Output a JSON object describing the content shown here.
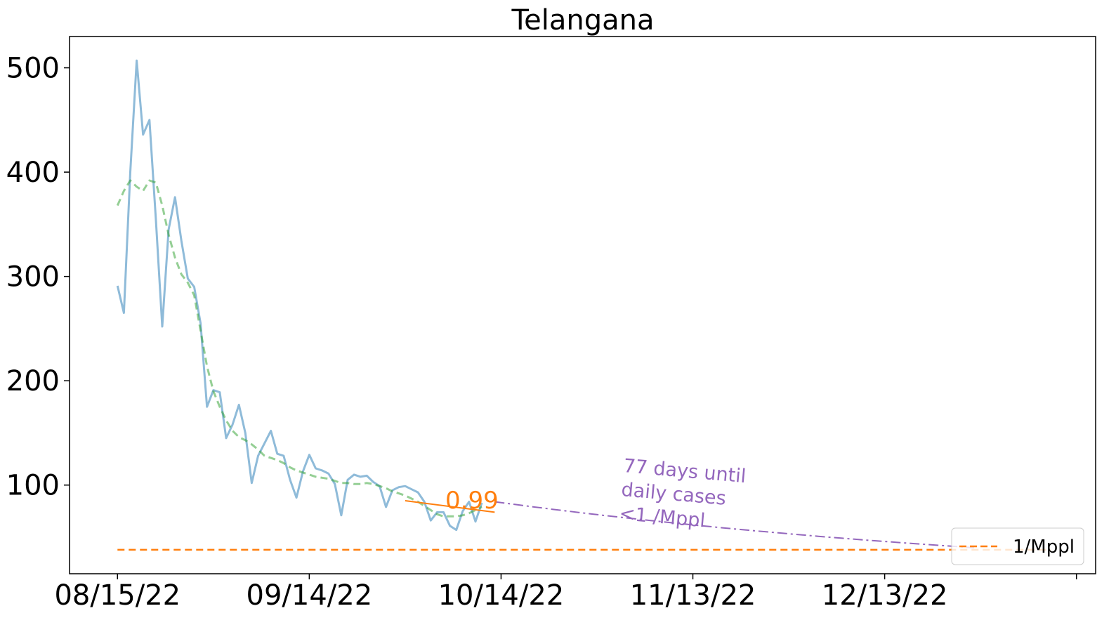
{
  "chart_data": {
    "type": "line",
    "title": "Telangana",
    "xlabel": "",
    "ylabel": "",
    "x_start": "08/15/22",
    "xlim_days": [
      -7.5,
      153
    ],
    "ylim": [
      15,
      530
    ],
    "yticks": [
      100,
      200,
      300,
      400,
      500
    ],
    "xticks": [
      {
        "day": 0,
        "label": "08/15/22"
      },
      {
        "day": 30,
        "label": "09/14/22"
      },
      {
        "day": 60,
        "label": "10/14/22"
      },
      {
        "day": 90,
        "label": "11/13/22"
      },
      {
        "day": 120,
        "label": "12/13/22"
      },
      {
        "day": 150,
        "label": ""
      }
    ],
    "grid": false,
    "legend": {
      "placement": "bottom-right",
      "entries": [
        "1/Mppl"
      ]
    },
    "series": [
      {
        "role": "daily",
        "color": "#1f77b4",
        "x": [
          0,
          1,
          2,
          3,
          4,
          5,
          6,
          7,
          8,
          9,
          10,
          11,
          12,
          13,
          14,
          15,
          16,
          17,
          18,
          19,
          20,
          21,
          22,
          23,
          24,
          25,
          26,
          27,
          28,
          29,
          30,
          31,
          32,
          33,
          34,
          35,
          36,
          37,
          38,
          39,
          40,
          41,
          42,
          43,
          44,
          45,
          46,
          47,
          48,
          49,
          50,
          51,
          52,
          53,
          54,
          55,
          56,
          57
        ],
        "y": [
          291,
          265,
          400,
          507,
          436,
          450,
          355,
          252,
          345,
          376,
          334,
          298,
          290,
          255,
          175,
          191,
          189,
          145,
          158,
          177,
          150,
          102,
          128,
          140,
          152,
          130,
          128,
          105,
          88,
          113,
          129,
          116,
          114,
          111,
          101,
          71,
          105,
          110,
          108,
          109,
          103,
          99,
          79,
          95,
          98,
          99,
          96,
          93,
          84,
          66,
          74,
          74,
          61,
          57,
          75,
          84,
          65,
          83
        ]
      },
      {
        "role": "smoothed",
        "color": "#2ca02c",
        "x": [
          0,
          1,
          2,
          3,
          4,
          5,
          6,
          7,
          8,
          9,
          10,
          11,
          12,
          13,
          14,
          15,
          16,
          17,
          18,
          19,
          20,
          21,
          22,
          23,
          24,
          25,
          26,
          27,
          28,
          29,
          30,
          31,
          32,
          33,
          34,
          35,
          36,
          37,
          38,
          39,
          40,
          41,
          42,
          43,
          44,
          45,
          46,
          47,
          48,
          49,
          50,
          51,
          52,
          53,
          54,
          55,
          56,
          57
        ],
        "y": [
          368,
          382,
          392,
          386,
          382,
          392,
          390,
          368,
          340,
          318,
          302,
          294,
          282,
          248,
          214,
          190,
          175,
          162,
          152,
          146,
          143,
          139,
          134,
          128,
          126,
          124,
          121,
          117,
          114,
          112,
          110,
          108,
          107,
          106,
          104,
          102,
          102,
          101,
          101,
          102,
          101,
          99,
          97,
          94,
          92,
          90,
          87,
          84,
          80,
          76,
          72,
          70,
          70,
          70,
          71,
          73,
          76,
          79
        ]
      }
    ],
    "trend_fit": {
      "color": "#ff7f0e",
      "x": [
        45,
        59
      ],
      "y": [
        85,
        74
      ],
      "label": "0.99"
    },
    "projection": {
      "color": "#9467bd",
      "x": [
        59,
        134
      ],
      "y": [
        84,
        40
      ]
    },
    "threshold": {
      "name": "1/Mppl",
      "color": "#ff7f0e",
      "y": 38,
      "x": [
        0,
        146
      ]
    },
    "annotation": {
      "lines": [
        "77 days until",
        "daily cases",
        "<1 /Mppl"
      ],
      "color": "#9467bd"
    }
  }
}
